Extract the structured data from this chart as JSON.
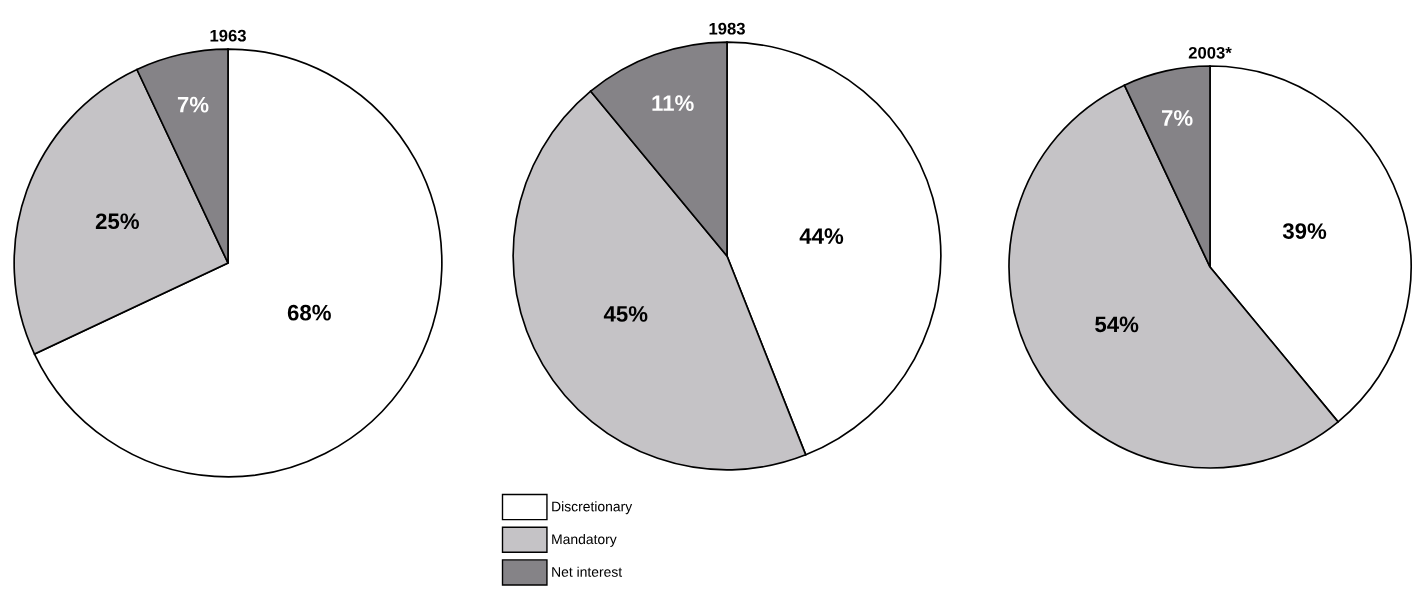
{
  "chart_data": [
    {
      "type": "pie",
      "title": "1963",
      "categories": [
        "Discretionary",
        "Mandatory",
        "Net interest"
      ],
      "values": [
        68,
        25,
        7
      ],
      "colors": [
        "#ffffff",
        "#c5c3c6",
        "#858387"
      ],
      "value_labels": [
        "68%",
        "25%",
        "7%"
      ],
      "legend": "bottom"
    },
    {
      "type": "pie",
      "title": "1983",
      "categories": [
        null,
        null,
        null
      ],
      "values": [
        44,
        45,
        11
      ],
      "colors": [
        "#ffffff",
        "#c5c3c6",
        "#858387"
      ],
      "value_labels": [
        "44%",
        "45%",
        "11%"
      ]
    },
    {
      "type": "pie",
      "title": "2003*",
      "categories": [
        null,
        null,
        null
      ],
      "values": [
        39,
        54,
        7
      ],
      "colors": [
        "#ffffff",
        "#c5c3c6",
        "#858387"
      ],
      "value_labels": [
        "39%",
        "54%",
        "7%"
      ]
    }
  ]
}
